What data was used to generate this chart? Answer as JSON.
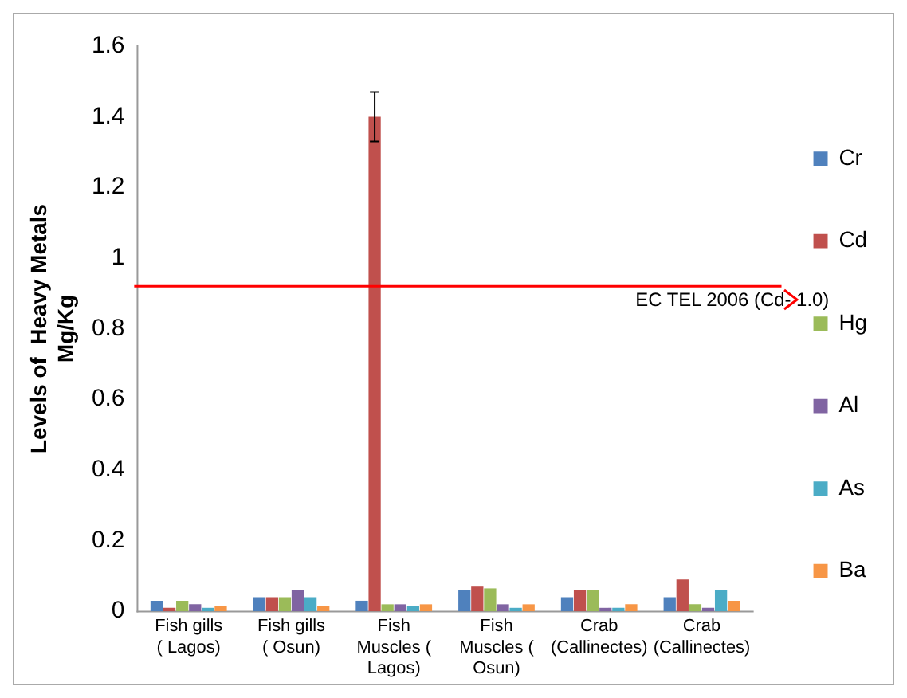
{
  "chart_data": {
    "type": "bar",
    "ylabel": "Levels of  Heavy Metals Mg/Kg",
    "categories": [
      "Fish gills ( Lagos)",
      "Fish gills ( Osun)",
      "Fish Muscles ( Lagos)",
      "Fish Muscles ( Osun)",
      "Crab (Callinectes)",
      "Crab (Callinectes)"
    ],
    "series": [
      {
        "name": "Cr",
        "color": "#4f81bd",
        "values": [
          0.03,
          0.04,
          0.03,
          0.06,
          0.04,
          0.04
        ]
      },
      {
        "name": "Cd",
        "color": "#c0504d",
        "values": [
          0.01,
          0.04,
          1.4,
          0.07,
          0.06,
          0.09
        ],
        "errors": [
          null,
          null,
          0.07,
          null,
          null,
          null
        ]
      },
      {
        "name": "Hg",
        "color": "#9bbb59",
        "values": [
          0.03,
          0.04,
          0.02,
          0.065,
          0.06,
          0.02
        ]
      },
      {
        "name": "Al",
        "color": "#8064a2",
        "values": [
          0.02,
          0.06,
          0.02,
          0.02,
          0.01,
          0.01
        ]
      },
      {
        "name": "As",
        "color": "#4bacc6",
        "values": [
          0.01,
          0.04,
          0.015,
          0.01,
          0.01,
          0.06
        ]
      },
      {
        "name": "Ba",
        "color": "#f79646",
        "values": [
          0.015,
          0.015,
          0.02,
          0.02,
          0.02,
          0.03
        ]
      }
    ],
    "ylim": [
      0,
      1.6
    ],
    "yticks": [
      0,
      0.2,
      0.4,
      0.6,
      0.8,
      1,
      1.2,
      1.4,
      1.6
    ],
    "grid": false,
    "legend": "right",
    "ref_lines": [
      {
        "axis": "y",
        "value": 0.92,
        "label": "EC TEL 2006 (Cd- 1.0)",
        "color": "#ff0000"
      }
    ]
  }
}
